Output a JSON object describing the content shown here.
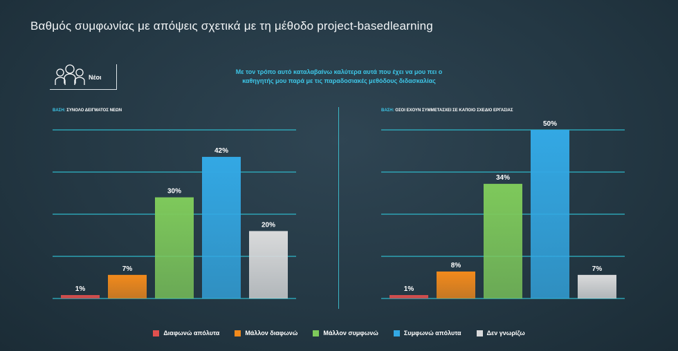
{
  "title": "Βαθμός συμφωνίας με απόψεις σχετικά με τη μέθοδο project-basedlearning",
  "group_label": "Νέοι",
  "subtitle_line1": "Με τον τρόπο αυτό καταλαβαίνω καλύτερα αυτά που έχει να μου πει  ο",
  "subtitle_line2": "καθηγητής μου παρά με τις παραδοσιακές μεθόδους διδασκαλίας",
  "legend": [
    {
      "name": "Διαφωνώ απόλυτα",
      "color": "#e0504e"
    },
    {
      "name": "Μάλλον διαφωνώ",
      "color": "#f28a1c"
    },
    {
      "name": "Μάλλον συμφωνώ",
      "color": "#7ec95b"
    },
    {
      "name": "Συμφωνώ απόλυτα",
      "color": "#33a8e4"
    },
    {
      "name": "Δεν γνωρίζω",
      "color": "#d9dadb"
    }
  ],
  "chart_data": [
    {
      "type": "bar",
      "base_prefix": "ΒΑΣΗ:",
      "base_text": "ΣΥΝΟΛΟ ΔΕΙΓΜΑΤΟΣ ΝΕΩΝ",
      "categories": [
        "Διαφωνώ απόλυτα",
        "Μάλλον διαφωνώ",
        "Μάλλον συμφωνώ",
        "Συμφωνώ απόλυτα",
        "Δεν γνωρίζω"
      ],
      "values": [
        1,
        7,
        30,
        42,
        20
      ],
      "labels": [
        "1%",
        "7%",
        "30%",
        "42%",
        "20%"
      ],
      "ylim": [
        0,
        50
      ],
      "grid": true
    },
    {
      "type": "bar",
      "base_prefix": "ΒΑΣΗ:",
      "base_text": "ΟΣΟΙ ΕΧΟΥΝ ΣΥΜΜΕΤΑΣΧΕΙ ΣΕ ΚΑΠΟΙΟ ΣΧΕΔΙΟ ΕΡΓΑΣΙΑΣ",
      "categories": [
        "Διαφωνώ απόλυτα",
        "Μάλλον διαφωνώ",
        "Μάλλον συμφωνώ",
        "Συμφωνώ απόλυτα",
        "Δεν γνωρίζω"
      ],
      "values": [
        1,
        8,
        34,
        50,
        7
      ],
      "labels": [
        "1%",
        "8%",
        "34%",
        "50%",
        "7%"
      ],
      "ylim": [
        0,
        50
      ],
      "grid": true
    }
  ]
}
